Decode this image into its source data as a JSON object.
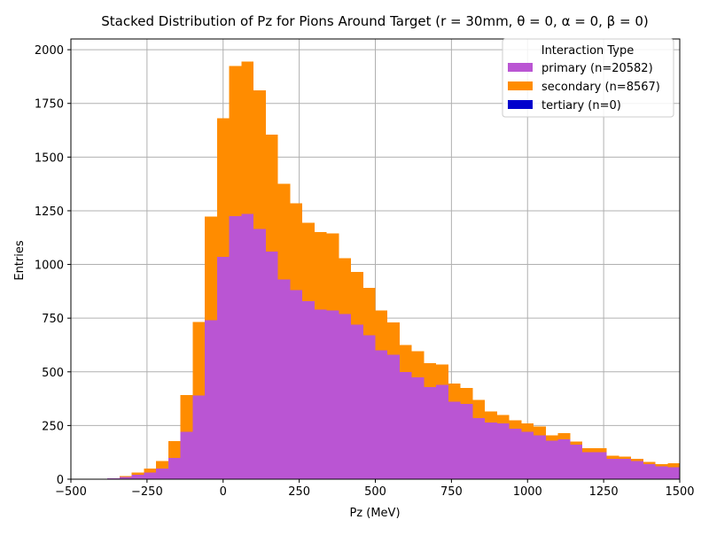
{
  "chart_data": {
    "type": "bar",
    "stacked": true,
    "title": "Stacked Distribution of Pz for Pions Around Target (r = 30mm, θ = 0, α = 0, β = 0)",
    "xlabel": "Pz (MeV)",
    "ylabel": "Entries",
    "xlim": [
      -500,
      1500
    ],
    "ylim": [
      0,
      2050
    ],
    "xticks": [
      -500,
      -250,
      0,
      250,
      500,
      750,
      1000,
      1250,
      1500
    ],
    "xtick_labels": [
      "−500",
      "−250",
      "0",
      "250",
      "500",
      "750",
      "1000",
      "1250",
      "1500"
    ],
    "yticks": [
      0,
      250,
      500,
      750,
      1000,
      1250,
      1500,
      1750,
      2000
    ],
    "ytick_labels": [
      "0",
      "250",
      "500",
      "750",
      "1000",
      "1250",
      "1500",
      "1750",
      "2000"
    ],
    "grid": true,
    "legend": {
      "title": "Interaction Type",
      "position": "top-right"
    },
    "bin_edges": [
      -500,
      -460,
      -420,
      -380,
      -340,
      -300,
      -260,
      -220,
      -180,
      -140,
      -100,
      -60,
      -20,
      20,
      60,
      100,
      140,
      180,
      220,
      260,
      300,
      340,
      380,
      420,
      460,
      500,
      540,
      580,
      620,
      660,
      700,
      740,
      780,
      820,
      860,
      900,
      940,
      980,
      1020,
      1060,
      1100,
      1140,
      1180,
      1220,
      1260,
      1300,
      1340,
      1380,
      1420,
      1460,
      1500
    ],
    "series": [
      {
        "name": "primary (n=20582)",
        "color": "#BA55D3",
        "values": [
          0,
          0,
          0,
          5,
          10,
          20,
          30,
          50,
          100,
          220,
          390,
          740,
          1035,
          1225,
          1235,
          1165,
          1060,
          930,
          880,
          830,
          790,
          785,
          770,
          720,
          670,
          600,
          580,
          500,
          475,
          430,
          440,
          360,
          350,
          285,
          265,
          260,
          235,
          220,
          205,
          180,
          185,
          160,
          125,
          125,
          95,
          95,
          85,
          70,
          60,
          55
        ]
      },
      {
        "name": "secondary (n=8567)",
        "color": "#FF8C00",
        "values": [
          0,
          0,
          0,
          0,
          5,
          10,
          20,
          35,
          78,
          172,
          343,
          482,
          645,
          700,
          710,
          645,
          545,
          445,
          405,
          365,
          360,
          360,
          260,
          245,
          220,
          185,
          150,
          125,
          120,
          110,
          95,
          85,
          75,
          85,
          50,
          40,
          40,
          40,
          40,
          25,
          30,
          15,
          20,
          20,
          15,
          10,
          10,
          10,
          10,
          20
        ]
      },
      {
        "name": "tertiary (n=0)",
        "color": "#0000CD",
        "values": [
          0,
          0,
          0,
          0,
          0,
          0,
          0,
          0,
          0,
          0,
          0,
          0,
          0,
          0,
          0,
          0,
          0,
          0,
          0,
          0,
          0,
          0,
          0,
          0,
          0,
          0,
          0,
          0,
          0,
          0,
          0,
          0,
          0,
          0,
          0,
          0,
          0,
          0,
          0,
          0,
          0,
          0,
          0,
          0,
          0,
          0,
          0,
          0,
          0,
          0
        ]
      }
    ]
  }
}
